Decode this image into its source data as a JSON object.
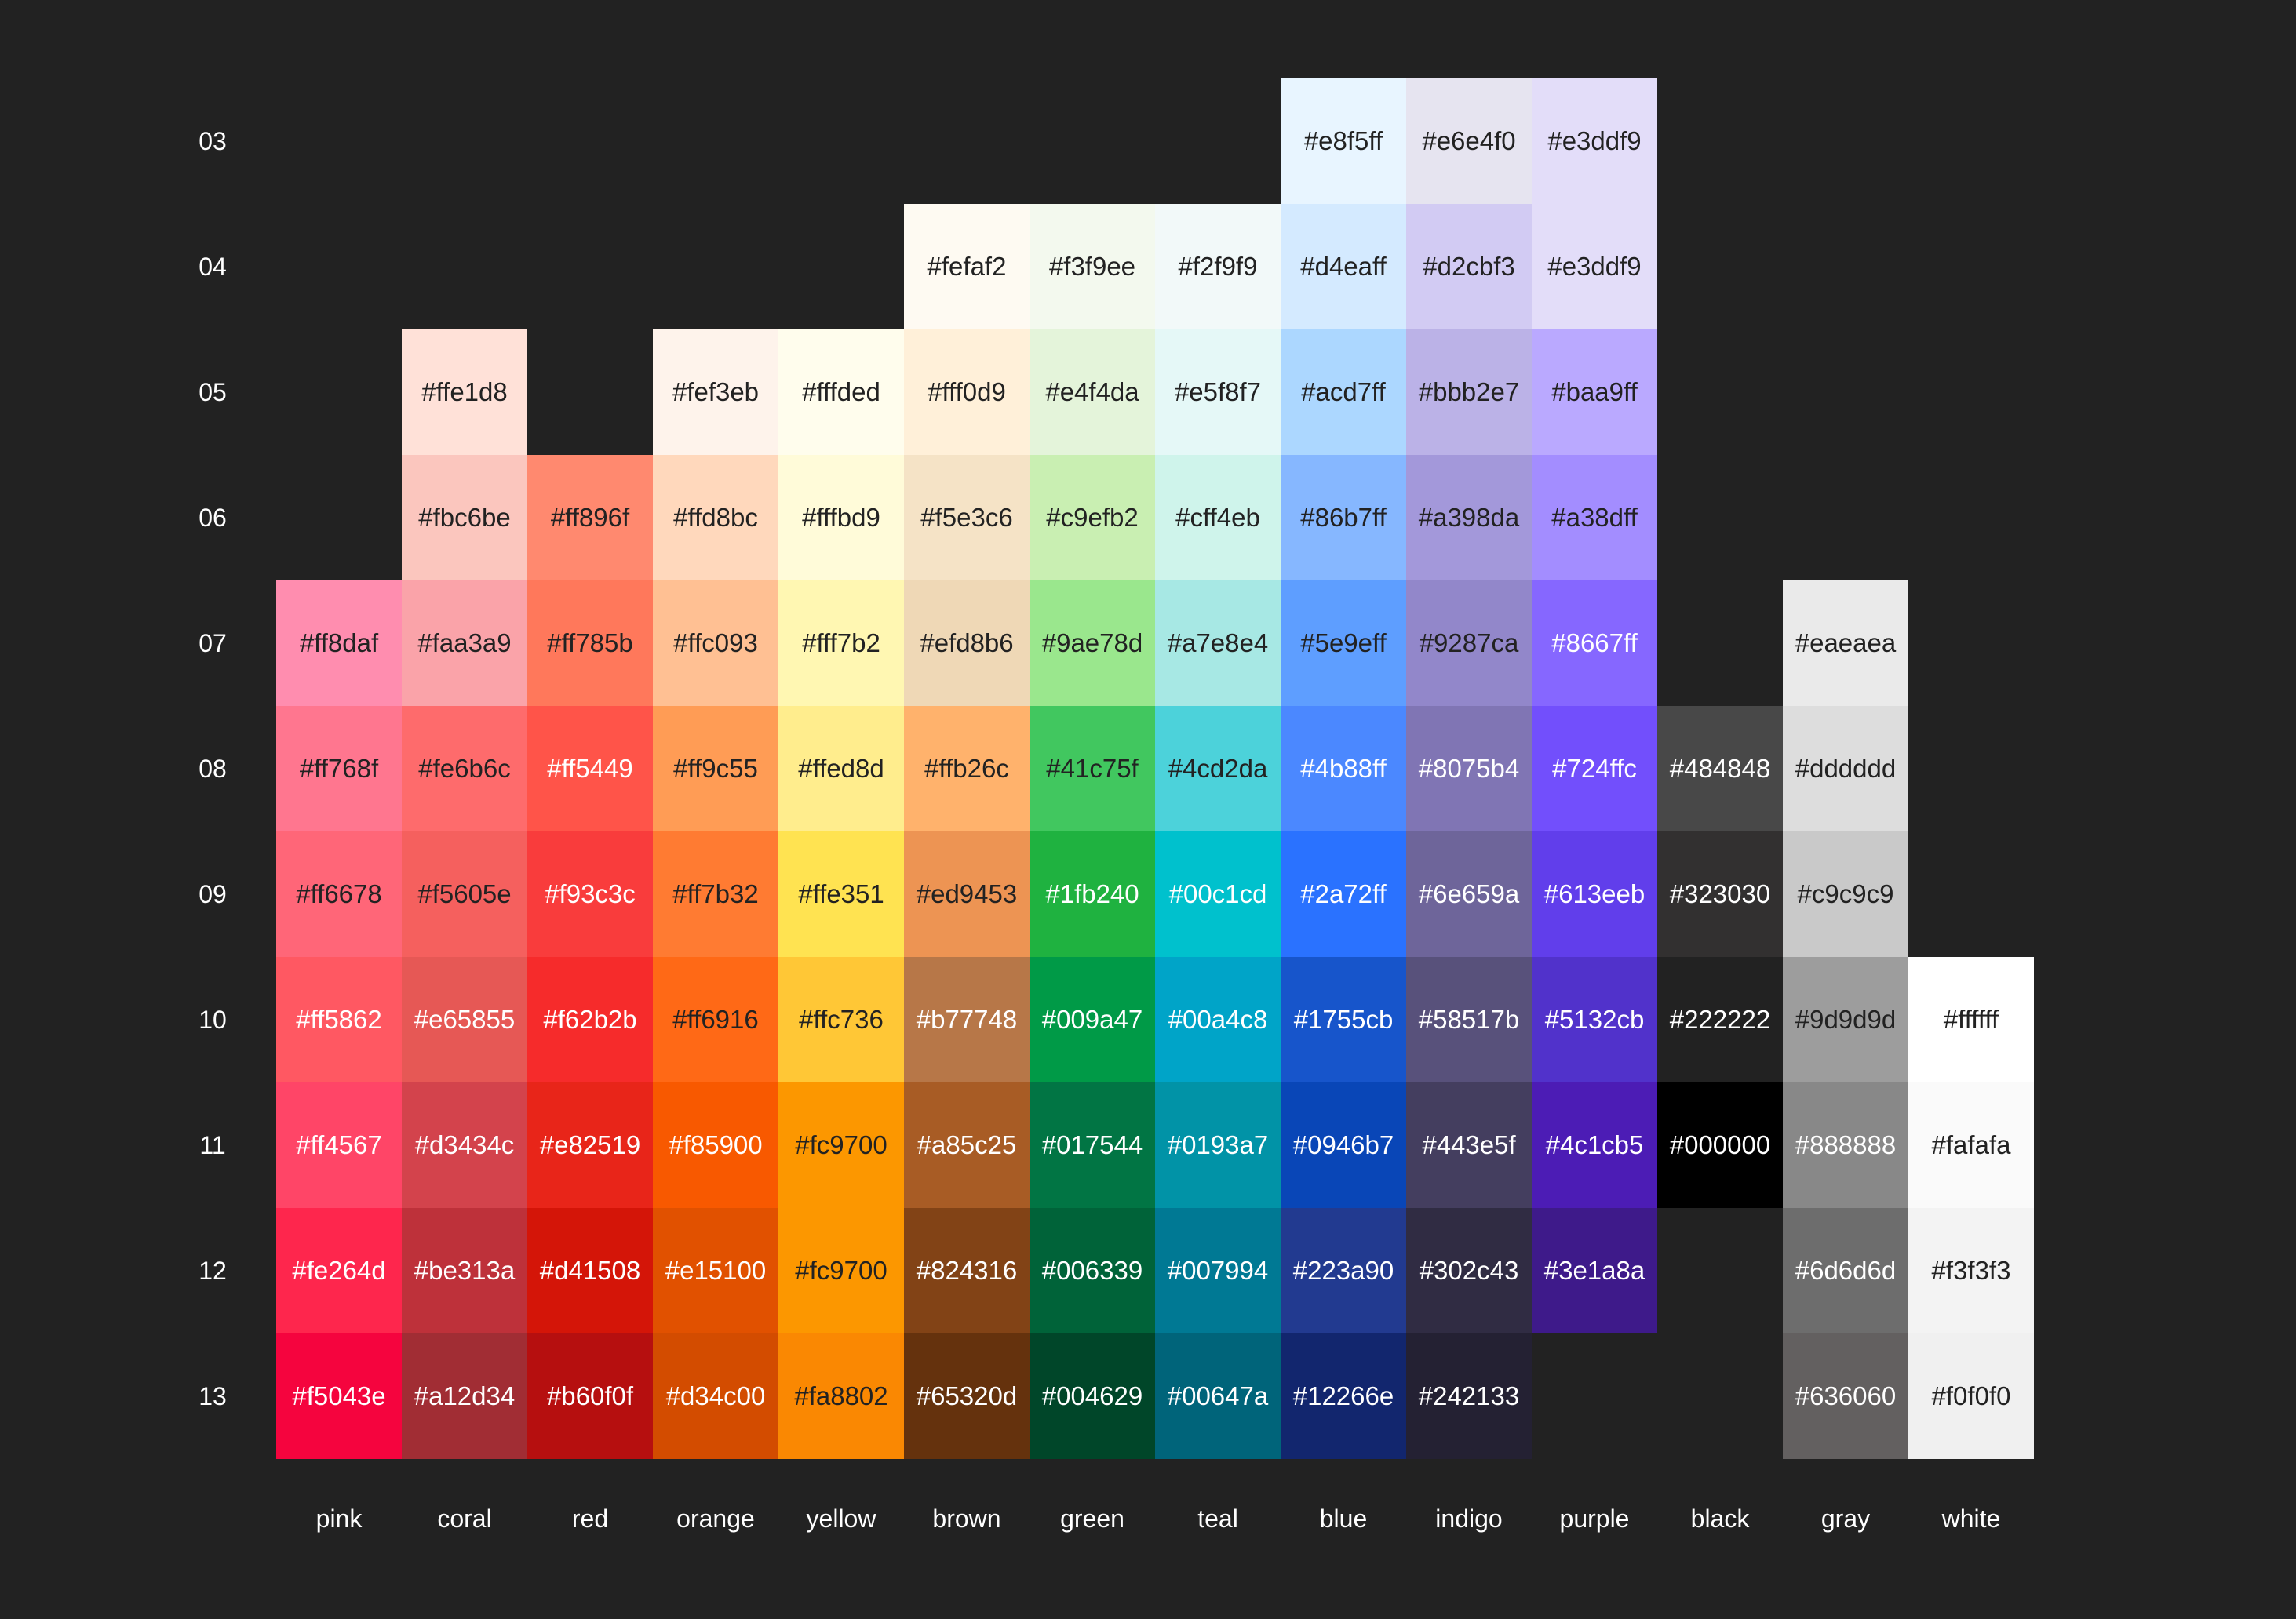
{
  "levels": [
    "03",
    "04",
    "05",
    "06",
    "07",
    "08",
    "09",
    "10",
    "11",
    "12",
    "13"
  ],
  "columns": [
    {
      "name": "pink",
      "start": "07",
      "colors": [
        "#ff8daf",
        "#ff768f",
        "#ff6678",
        "#ff5862",
        "#ff4567",
        "#fe264d",
        "#f5043e"
      ]
    },
    {
      "name": "coral",
      "start": "05",
      "colors": [
        "#ffe1d8",
        "#fbc6be",
        "#faa3a9",
        "#fe6b6c",
        "#f5605e",
        "#e65855",
        "#d3434c",
        "#be313a",
        "#a12d34"
      ]
    },
    {
      "name": "red",
      "start": "06",
      "colors": [
        "#ff896f",
        "#ff785b",
        "#ff5449",
        "#f93c3c",
        "#f62b2b",
        "#e82519",
        "#d41508",
        "#b60f0f"
      ]
    },
    {
      "name": "orange",
      "start": "05",
      "colors": [
        "#fef3eb",
        "#ffd8bc",
        "#ffc093",
        "#ff9c55",
        "#ff7b32",
        "#ff6916",
        "#f85900",
        "#e15100",
        "#d34c00"
      ]
    },
    {
      "name": "yellow",
      "start": "05",
      "colors": [
        "#fffded",
        "#fffbd9",
        "#fff7b2",
        "#ffed8d",
        "#ffe351",
        "#ffc736",
        "#fc9700",
        "#fc9700",
        "#fa8802"
      ]
    },
    {
      "name": "brown",
      "start": "04",
      "colors": [
        "#fefaf2",
        "#fff0d9",
        "#f5e3c6",
        "#efd8b6",
        "#ffb26c",
        "#ed9453",
        "#b77748",
        "#a85c25",
        "#824316",
        "#65320d"
      ]
    },
    {
      "name": "green",
      "start": "04",
      "colors": [
        "#f3f9ee",
        "#e4f4da",
        "#c9efb2",
        "#9ae78d",
        "#41c75f",
        "#1fb240",
        "#009a47",
        "#017544",
        "#006339",
        "#004629"
      ]
    },
    {
      "name": "teal",
      "start": "04",
      "colors": [
        "#f2f9f9",
        "#e5f8f7",
        "#cff4eb",
        "#a7e8e4",
        "#4cd2da",
        "#00c1cd",
        "#00a4c8",
        "#0193a7",
        "#007994",
        "#00647a"
      ]
    },
    {
      "name": "blue",
      "start": "03",
      "colors": [
        "#e8f5ff",
        "#d4eaff",
        "#acd7ff",
        "#86b7ff",
        "#5e9eff",
        "#4b88ff",
        "#2a72ff",
        "#1755cb",
        "#0946b7",
        "#223a90",
        "#12266e"
      ]
    },
    {
      "name": "indigo",
      "start": "03",
      "colors": [
        "#e6e4f0",
        "#d2cbf3",
        "#bbb2e7",
        "#a398da",
        "#9287ca",
        "#8075b4",
        "#6e659a",
        "#58517b",
        "#443e5f",
        "#302c43",
        "#242133"
      ]
    },
    {
      "name": "purple",
      "start": "03",
      "colors": [
        "#e3ddf9",
        "#e3ddf9",
        "#baa9ff",
        "#a38dff",
        "#8667ff",
        "#724ffc",
        "#613eeb",
        "#5132cb",
        "#4c1cb5",
        "#3e1a8a"
      ]
    },
    {
      "name": "black",
      "start": "08",
      "colors": [
        "#484848",
        "#323030",
        "#222222",
        "#000000"
      ]
    },
    {
      "name": "gray",
      "start": "07",
      "colors": [
        "#eaeaea",
        "#dddddd",
        "#c9c9c9",
        "#9d9d9d",
        "#888888",
        "#6d6d6d",
        "#636060"
      ]
    },
    {
      "name": "white",
      "start": "10",
      "colors": [
        "#ffffff",
        "#fafafa",
        "#f3f3f3",
        "#f0f0f0"
      ]
    }
  ]
}
